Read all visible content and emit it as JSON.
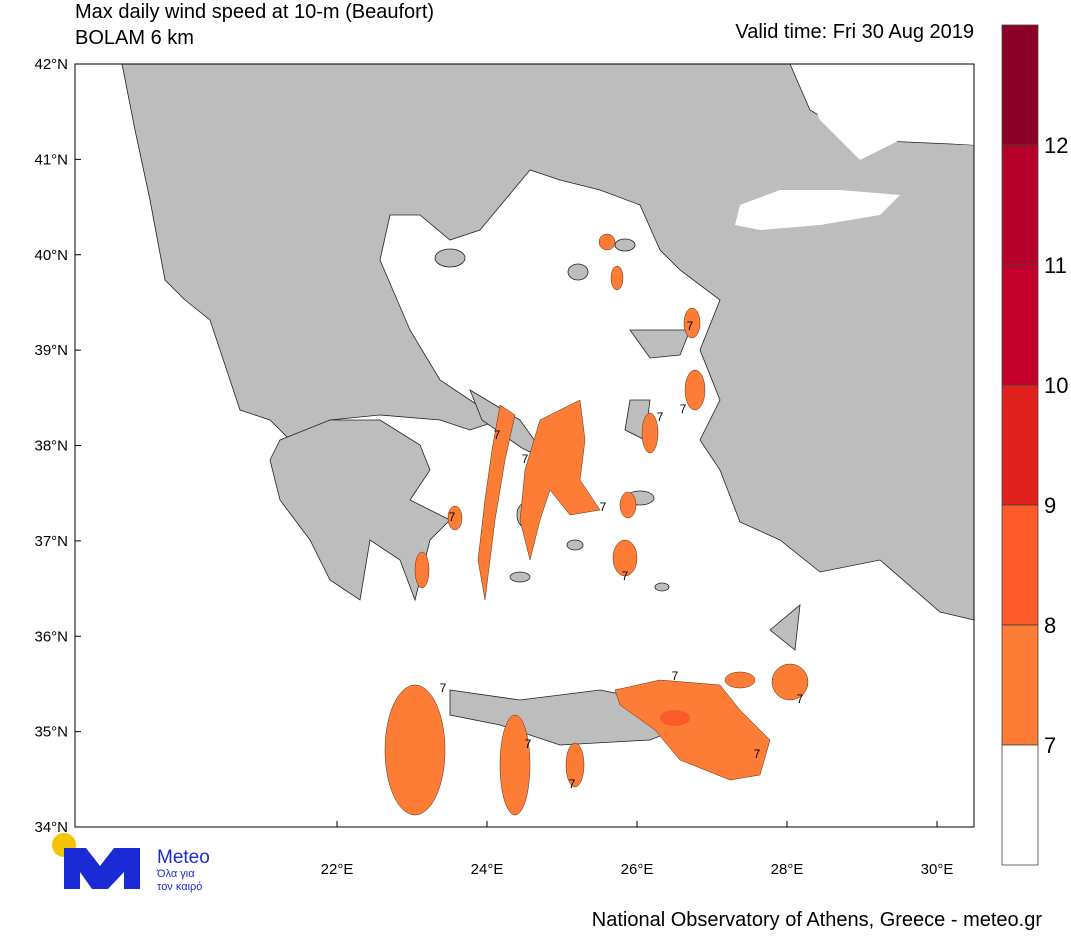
{
  "header": {
    "title": "Max daily wind speed at 10-m (Beaufort)",
    "subtitle": "BOLAM 6 km",
    "valid_time": "Valid time: Fri 30 Aug 2019"
  },
  "map": {
    "lat_labels": [
      "42°N",
      "41°N",
      "40°N",
      "39°N",
      "38°N",
      "37°N",
      "36°N",
      "35°N",
      "34°N"
    ],
    "lon_labels": [
      "22°E",
      "24°E",
      "26°E",
      "28°E",
      "30°E"
    ],
    "contour_labels": [
      "7",
      "7",
      "7",
      "7",
      "7",
      "7",
      "7",
      "7",
      "7",
      "7",
      "7",
      "7",
      "7",
      "7"
    ]
  },
  "colorbar": {
    "colors": [
      "#8b0026",
      "#b5002a",
      "#c4002c",
      "#e0201c",
      "#fc5a2a",
      "#fd7d36",
      "#ffffff"
    ],
    "labels": [
      "12",
      "11",
      "10",
      "9",
      "8",
      "7"
    ]
  },
  "logo": {
    "name": "Meteo",
    "tagline_1": "Όλα για",
    "tagline_2": "τον καιρό"
  },
  "footer": "National Observatory of Athens, Greece - meteo.gr"
}
